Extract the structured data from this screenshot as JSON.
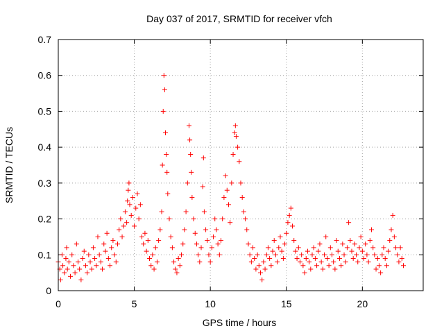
{
  "chart_data": {
    "type": "scatter",
    "title": "Day 037 of 2017, SRMTID for receiver vfch",
    "xlabel": "GPS time / hours",
    "ylabel": "SRMTID / TECUs",
    "xlim": [
      0,
      24
    ],
    "ylim": [
      0,
      0.7
    ],
    "xticks": [
      0,
      5,
      10,
      15,
      20
    ],
    "xtick_labels": [
      "0",
      "5",
      "10",
      "15",
      "20"
    ],
    "yticks": [
      0,
      0.1,
      0.2,
      0.3,
      0.4,
      0.5,
      0.6,
      0.7
    ],
    "ytick_labels": [
      "0",
      "0.1",
      "0.2",
      "0.3",
      "0.4",
      "0.5",
      "0.6",
      "0.7"
    ],
    "grid": true,
    "marker": "+",
    "color": "#ff0000",
    "series": [
      {
        "name": "SRMTID",
        "points": [
          [
            0.0,
            0.08
          ],
          [
            0.1,
            0.06
          ],
          [
            0.15,
            0.03
          ],
          [
            0.25,
            0.1
          ],
          [
            0.3,
            0.07
          ],
          [
            0.4,
            0.05
          ],
          [
            0.5,
            0.09
          ],
          [
            0.55,
            0.12
          ],
          [
            0.6,
            0.06
          ],
          [
            0.7,
            0.08
          ],
          [
            0.8,
            0.04
          ],
          [
            0.9,
            0.1
          ],
          [
            1.0,
            0.07
          ],
          [
            1.1,
            0.05
          ],
          [
            1.2,
            0.13
          ],
          [
            1.3,
            0.08
          ],
          [
            1.4,
            0.06
          ],
          [
            1.5,
            0.03
          ],
          [
            1.6,
            0.09
          ],
          [
            1.7,
            0.11
          ],
          [
            1.8,
            0.07
          ],
          [
            1.9,
            0.05
          ],
          [
            2.0,
            0.1
          ],
          [
            2.1,
            0.08
          ],
          [
            2.2,
            0.06
          ],
          [
            2.3,
            0.12
          ],
          [
            2.4,
            0.09
          ],
          [
            2.5,
            0.07
          ],
          [
            2.6,
            0.15
          ],
          [
            2.7,
            0.1
          ],
          [
            2.8,
            0.08
          ],
          [
            2.9,
            0.06
          ],
          [
            3.0,
            0.13
          ],
          [
            3.1,
            0.11
          ],
          [
            3.2,
            0.16
          ],
          [
            3.3,
            0.09
          ],
          [
            3.4,
            0.07
          ],
          [
            3.5,
            0.12
          ],
          [
            3.6,
            0.14
          ],
          [
            3.7,
            0.1
          ],
          [
            3.8,
            0.08
          ],
          [
            3.9,
            0.13
          ],
          [
            4.0,
            0.17
          ],
          [
            4.1,
            0.2
          ],
          [
            4.2,
            0.15
          ],
          [
            4.3,
            0.18
          ],
          [
            4.4,
            0.22
          ],
          [
            4.5,
            0.19
          ],
          [
            4.55,
            0.25
          ],
          [
            4.6,
            0.28
          ],
          [
            4.65,
            0.3
          ],
          [
            4.7,
            0.24
          ],
          [
            4.8,
            0.21
          ],
          [
            4.9,
            0.26
          ],
          [
            5.0,
            0.18
          ],
          [
            5.1,
            0.23
          ],
          [
            5.2,
            0.27
          ],
          [
            5.3,
            0.2
          ],
          [
            5.4,
            0.24
          ],
          [
            5.5,
            0.15
          ],
          [
            5.6,
            0.13
          ],
          [
            5.7,
            0.16
          ],
          [
            5.8,
            0.11
          ],
          [
            5.9,
            0.14
          ],
          [
            6.0,
            0.09
          ],
          [
            6.1,
            0.07
          ],
          [
            6.2,
            0.1
          ],
          [
            6.3,
            0.06
          ],
          [
            6.4,
            0.12
          ],
          [
            6.5,
            0.08
          ],
          [
            6.6,
            0.14
          ],
          [
            6.7,
            0.17
          ],
          [
            6.8,
            0.22
          ],
          [
            6.85,
            0.35
          ],
          [
            6.9,
            0.5
          ],
          [
            6.95,
            0.6
          ],
          [
            7.0,
            0.56
          ],
          [
            7.05,
            0.44
          ],
          [
            7.1,
            0.38
          ],
          [
            7.15,
            0.33
          ],
          [
            7.2,
            0.27
          ],
          [
            7.3,
            0.2
          ],
          [
            7.4,
            0.15
          ],
          [
            7.5,
            0.12
          ],
          [
            7.6,
            0.08
          ],
          [
            7.7,
            0.06
          ],
          [
            7.8,
            0.05
          ],
          [
            7.9,
            0.09
          ],
          [
            8.0,
            0.07
          ],
          [
            8.1,
            0.1
          ],
          [
            8.2,
            0.13
          ],
          [
            8.3,
            0.17
          ],
          [
            8.4,
            0.22
          ],
          [
            8.5,
            0.3
          ],
          [
            8.6,
            0.46
          ],
          [
            8.65,
            0.42
          ],
          [
            8.7,
            0.38
          ],
          [
            8.75,
            0.33
          ],
          [
            8.8,
            0.26
          ],
          [
            8.9,
            0.2
          ],
          [
            9.0,
            0.16
          ],
          [
            9.1,
            0.13
          ],
          [
            9.2,
            0.1
          ],
          [
            9.3,
            0.08
          ],
          [
            9.4,
            0.12
          ],
          [
            9.5,
            0.29
          ],
          [
            9.55,
            0.37
          ],
          [
            9.6,
            0.22
          ],
          [
            9.7,
            0.17
          ],
          [
            9.8,
            0.14
          ],
          [
            9.9,
            0.1
          ],
          [
            10.0,
            0.08
          ],
          [
            10.1,
            0.12
          ],
          [
            10.2,
            0.15
          ],
          [
            10.3,
            0.2
          ],
          [
            10.4,
            0.17
          ],
          [
            10.5,
            0.13
          ],
          [
            10.6,
            0.1
          ],
          [
            10.7,
            0.14
          ],
          [
            10.8,
            0.2
          ],
          [
            10.9,
            0.26
          ],
          [
            11.0,
            0.32
          ],
          [
            11.1,
            0.28
          ],
          [
            11.2,
            0.24
          ],
          [
            11.3,
            0.19
          ],
          [
            11.4,
            0.3
          ],
          [
            11.5,
            0.38
          ],
          [
            11.6,
            0.44
          ],
          [
            11.65,
            0.46
          ],
          [
            11.7,
            0.43
          ],
          [
            11.8,
            0.4
          ],
          [
            11.9,
            0.36
          ],
          [
            12.0,
            0.3
          ],
          [
            12.1,
            0.26
          ],
          [
            12.2,
            0.22
          ],
          [
            12.3,
            0.2
          ],
          [
            12.4,
            0.17
          ],
          [
            12.5,
            0.13
          ],
          [
            12.6,
            0.1
          ],
          [
            12.7,
            0.08
          ],
          [
            12.8,
            0.12
          ],
          [
            12.9,
            0.09
          ],
          [
            13.0,
            0.06
          ],
          [
            13.1,
            0.1
          ],
          [
            13.2,
            0.07
          ],
          [
            13.3,
            0.05
          ],
          [
            13.4,
            0.03
          ],
          [
            13.5,
            0.08
          ],
          [
            13.6,
            0.06
          ],
          [
            13.7,
            0.1
          ],
          [
            13.8,
            0.12
          ],
          [
            13.9,
            0.09
          ],
          [
            14.0,
            0.07
          ],
          [
            14.1,
            0.11
          ],
          [
            14.2,
            0.14
          ],
          [
            14.3,
            0.1
          ],
          [
            14.4,
            0.08
          ],
          [
            14.5,
            0.12
          ],
          [
            14.6,
            0.15
          ],
          [
            14.7,
            0.11
          ],
          [
            14.8,
            0.09
          ],
          [
            14.9,
            0.13
          ],
          [
            15.0,
            0.16
          ],
          [
            15.1,
            0.19
          ],
          [
            15.2,
            0.21
          ],
          [
            15.3,
            0.23
          ],
          [
            15.4,
            0.18
          ],
          [
            15.5,
            0.14
          ],
          [
            15.6,
            0.11
          ],
          [
            15.7,
            0.09
          ],
          [
            15.8,
            0.12
          ],
          [
            15.9,
            0.08
          ],
          [
            16.0,
            0.1
          ],
          [
            16.1,
            0.07
          ],
          [
            16.2,
            0.05
          ],
          [
            16.3,
            0.09
          ],
          [
            16.4,
            0.11
          ],
          [
            16.5,
            0.08
          ],
          [
            16.6,
            0.06
          ],
          [
            16.7,
            0.1
          ],
          [
            16.8,
            0.12
          ],
          [
            16.9,
            0.09
          ],
          [
            17.0,
            0.07
          ],
          [
            17.1,
            0.11
          ],
          [
            17.2,
            0.13
          ],
          [
            17.3,
            0.08
          ],
          [
            17.4,
            0.06
          ],
          [
            17.5,
            0.1
          ],
          [
            17.6,
            0.15
          ],
          [
            17.7,
            0.09
          ],
          [
            17.8,
            0.07
          ],
          [
            17.9,
            0.12
          ],
          [
            18.0,
            0.1
          ],
          [
            18.1,
            0.08
          ],
          [
            18.2,
            0.06
          ],
          [
            18.3,
            0.14
          ],
          [
            18.4,
            0.11
          ],
          [
            18.5,
            0.09
          ],
          [
            18.6,
            0.07
          ],
          [
            18.7,
            0.13
          ],
          [
            18.8,
            0.1
          ],
          [
            18.9,
            0.08
          ],
          [
            19.0,
            0.12
          ],
          [
            19.1,
            0.19
          ],
          [
            19.2,
            0.14
          ],
          [
            19.3,
            0.11
          ],
          [
            19.4,
            0.09
          ],
          [
            19.5,
            0.13
          ],
          [
            19.6,
            0.1
          ],
          [
            19.7,
            0.08
          ],
          [
            19.8,
            0.12
          ],
          [
            19.9,
            0.15
          ],
          [
            20.0,
            0.11
          ],
          [
            20.1,
            0.09
          ],
          [
            20.2,
            0.13
          ],
          [
            20.3,
            0.1
          ],
          [
            20.4,
            0.08
          ],
          [
            20.5,
            0.14
          ],
          [
            20.6,
            0.17
          ],
          [
            20.7,
            0.12
          ],
          [
            20.8,
            0.1
          ],
          [
            20.9,
            0.06
          ],
          [
            21.0,
            0.09
          ],
          [
            21.1,
            0.07
          ],
          [
            21.2,
            0.05
          ],
          [
            21.3,
            0.1
          ],
          [
            21.4,
            0.12
          ],
          [
            21.5,
            0.09
          ],
          [
            21.6,
            0.07
          ],
          [
            21.7,
            0.11
          ],
          [
            21.8,
            0.14
          ],
          [
            21.9,
            0.17
          ],
          [
            22.0,
            0.21
          ],
          [
            22.1,
            0.15
          ],
          [
            22.2,
            0.12
          ],
          [
            22.3,
            0.1
          ],
          [
            22.4,
            0.08
          ],
          [
            22.5,
            0.12
          ],
          [
            22.6,
            0.09
          ],
          [
            22.7,
            0.07
          ]
        ]
      }
    ]
  }
}
